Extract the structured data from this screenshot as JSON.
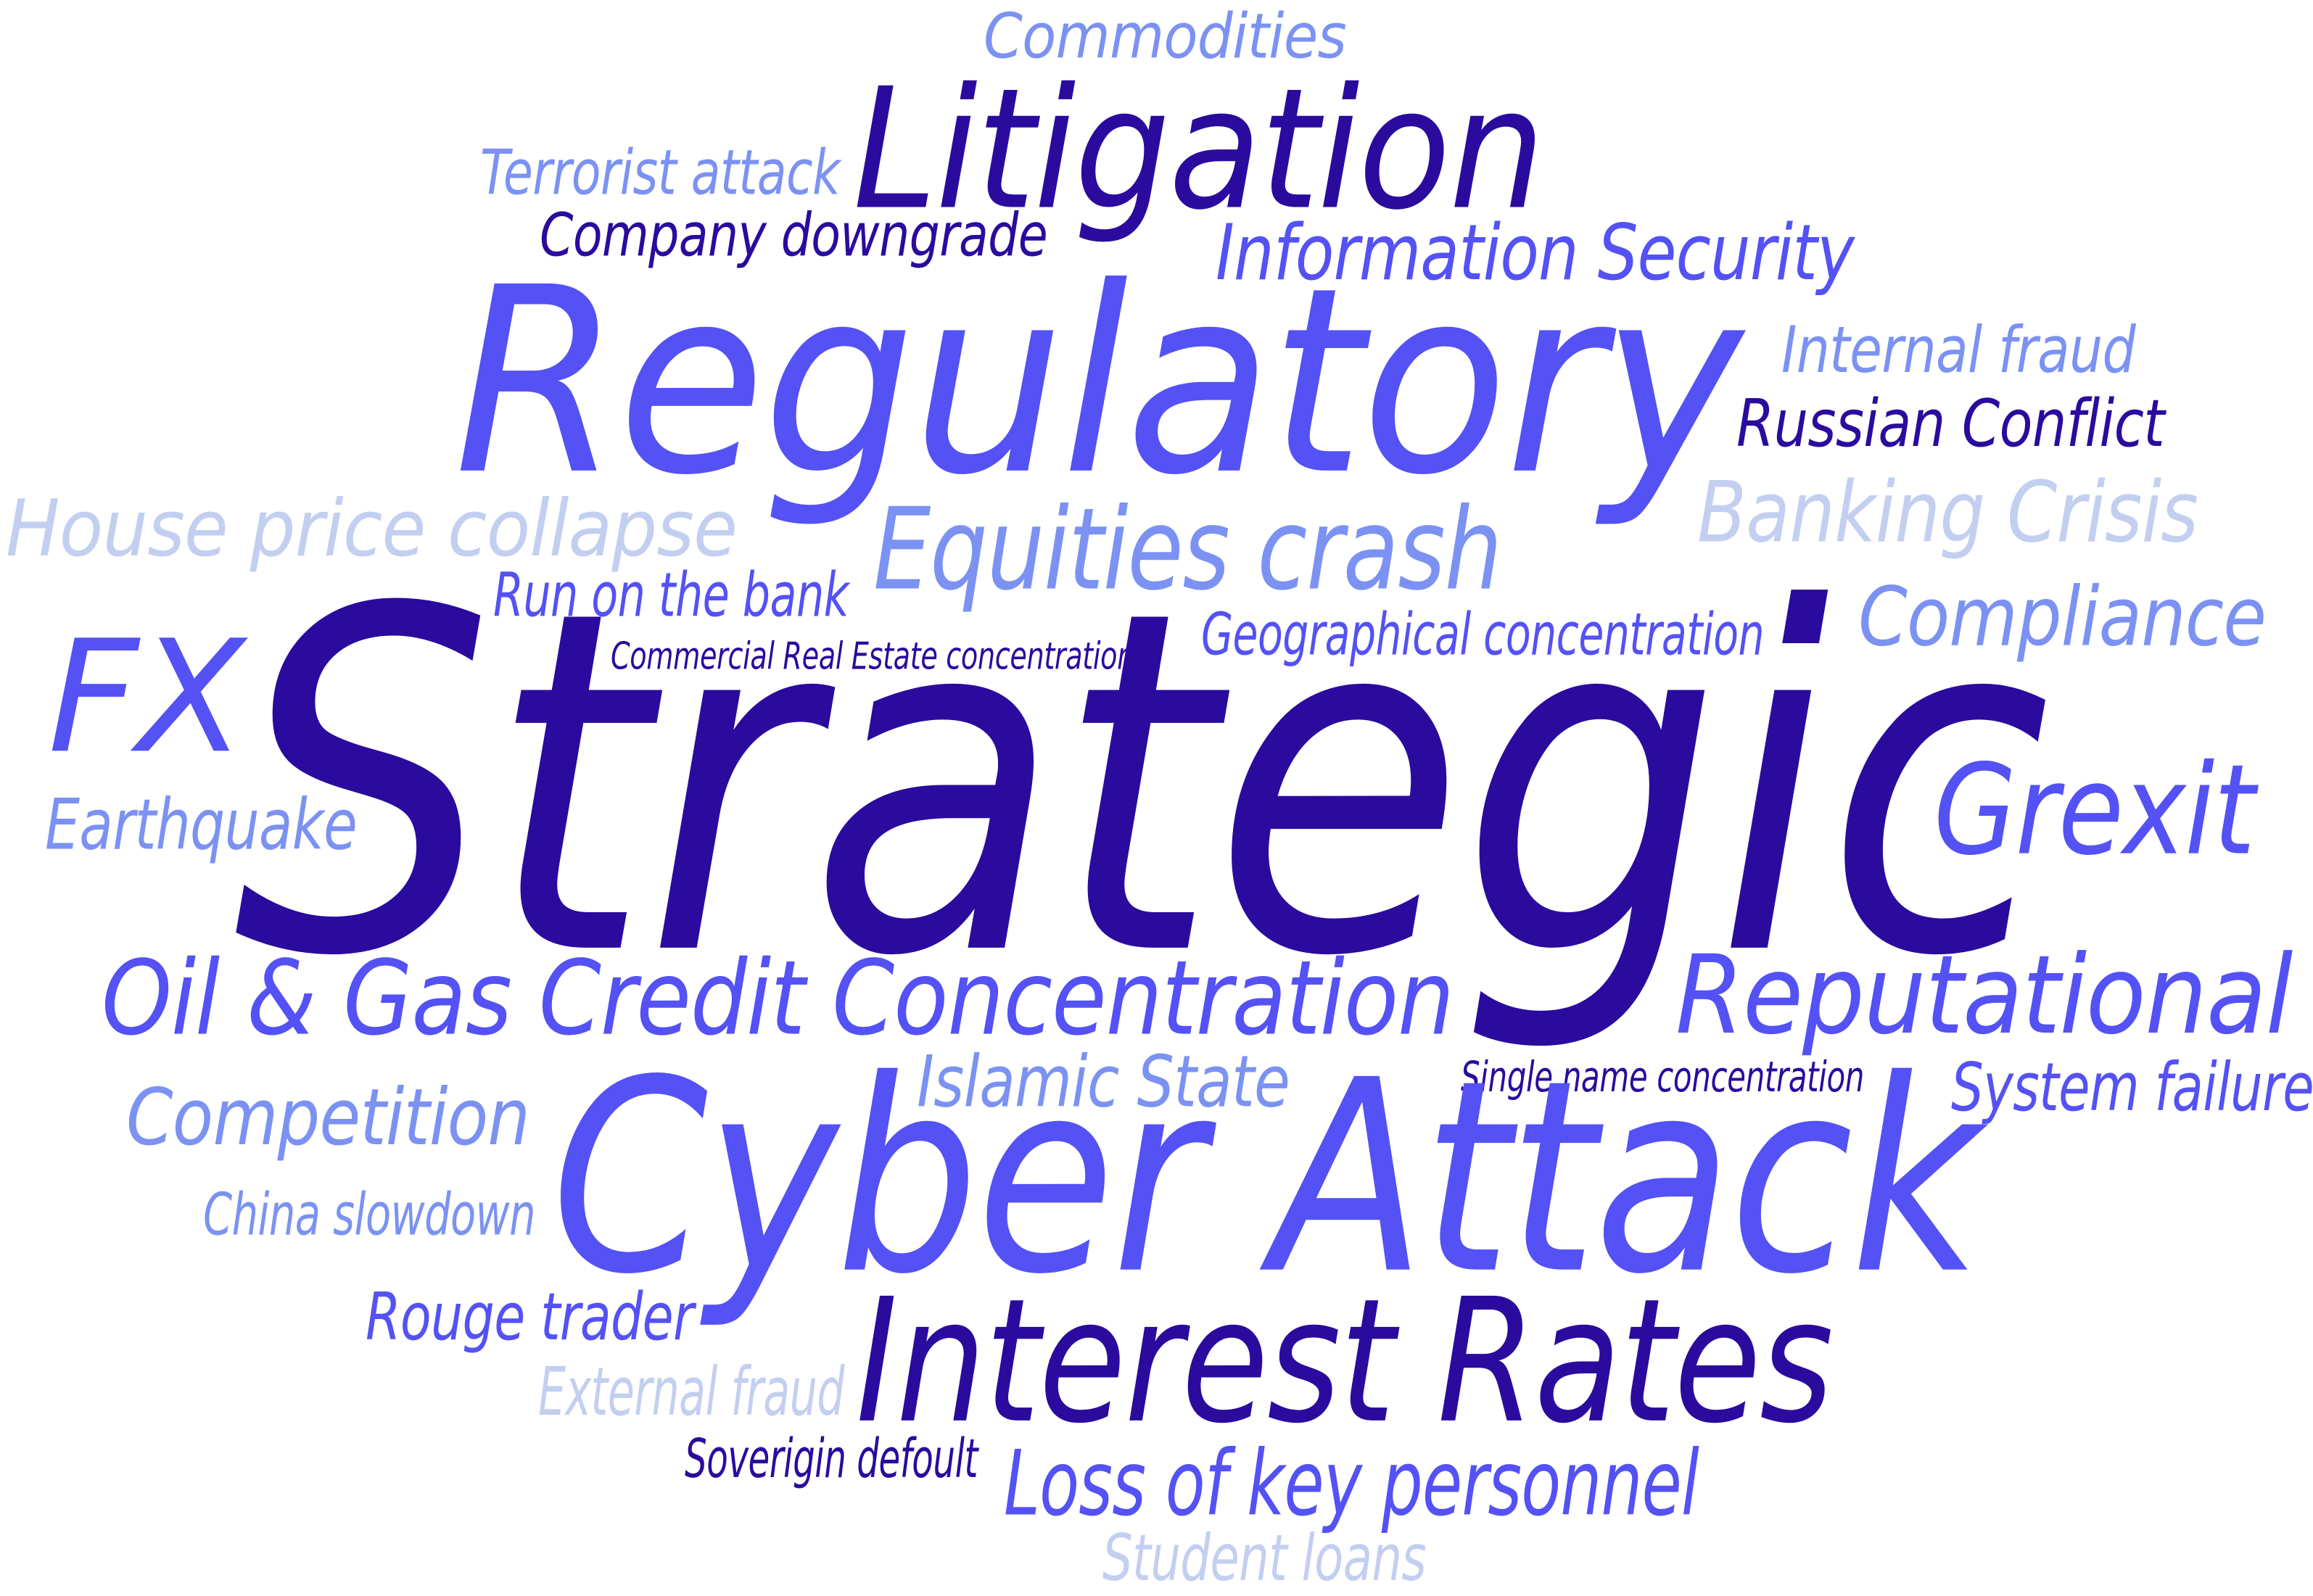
{
  "palette": {
    "dark": "#2a0b9e",
    "medium": "#5451f5",
    "light": "#7b92f3",
    "pale": "#c3cff0"
  },
  "words": [
    {
      "key": "commodities",
      "text": "Commodities",
      "color": "light"
    },
    {
      "key": "litigation",
      "text": "Litigation",
      "color": "dark"
    },
    {
      "key": "terrorist-attack",
      "text": "Terrorist attack",
      "color": "light"
    },
    {
      "key": "company-downgrade",
      "text": "Company downgrade",
      "color": "dark"
    },
    {
      "key": "information-security",
      "text": "Information Security",
      "color": "medium"
    },
    {
      "key": "regulatory",
      "text": "Regulatory",
      "color": "medium"
    },
    {
      "key": "internal-fraud",
      "text": "Internal fraud",
      "color": "light"
    },
    {
      "key": "russian-conflict",
      "text": "Russian Conflict",
      "color": "dark"
    },
    {
      "key": "house-price-collapse",
      "text": "House price collapse",
      "color": "pale"
    },
    {
      "key": "equities-crash",
      "text": "Equities crash",
      "color": "light"
    },
    {
      "key": "banking-crisis",
      "text": "Banking Crisis",
      "color": "pale"
    },
    {
      "key": "run-on-the-bank",
      "text": "Run on the bank",
      "color": "medium"
    },
    {
      "key": "compliance",
      "text": "Compliance",
      "color": "light"
    },
    {
      "key": "commercial-real-estate-concentration",
      "text": "Commercial Real Estate concentration",
      "color": "dark"
    },
    {
      "key": "geographical-concentration",
      "text": "Geographical concentration",
      "color": "medium"
    },
    {
      "key": "fx",
      "text": "FX",
      "color": "medium"
    },
    {
      "key": "strategic",
      "text": "Strategic",
      "color": "dark"
    },
    {
      "key": "earthquake",
      "text": "Earthquake",
      "color": "light"
    },
    {
      "key": "grexit",
      "text": "Grexit",
      "color": "medium"
    },
    {
      "key": "oil-gas-credit-concentration",
      "text": "Oil & Gas Credit Concentration",
      "color": "medium"
    },
    {
      "key": "reputational",
      "text": "Reputational",
      "color": "medium"
    },
    {
      "key": "islamic-state",
      "text": "Islamic State",
      "color": "light"
    },
    {
      "key": "single-name-concentration",
      "text": "Single name concentration",
      "color": "dark"
    },
    {
      "key": "system-failure",
      "text": "System failure",
      "color": "medium"
    },
    {
      "key": "competition",
      "text": "Competition",
      "color": "light"
    },
    {
      "key": "cyber-attack",
      "text": "Cyber Attack",
      "color": "medium"
    },
    {
      "key": "china-slowdown",
      "text": "China slowdown",
      "color": "light"
    },
    {
      "key": "rouge-trader",
      "text": "Rouge trader",
      "color": "medium"
    },
    {
      "key": "interest-rates",
      "text": "Interest Rates",
      "color": "dark"
    },
    {
      "key": "external-fraud",
      "text": "External fraud",
      "color": "pale"
    },
    {
      "key": "soverigin-defoult",
      "text": "Soverigin defoult",
      "color": "dark"
    },
    {
      "key": "loss-of-key-personnel",
      "text": "Loss of key personnel",
      "color": "medium"
    },
    {
      "key": "student-loans",
      "text": "Student loans",
      "color": "pale"
    }
  ]
}
